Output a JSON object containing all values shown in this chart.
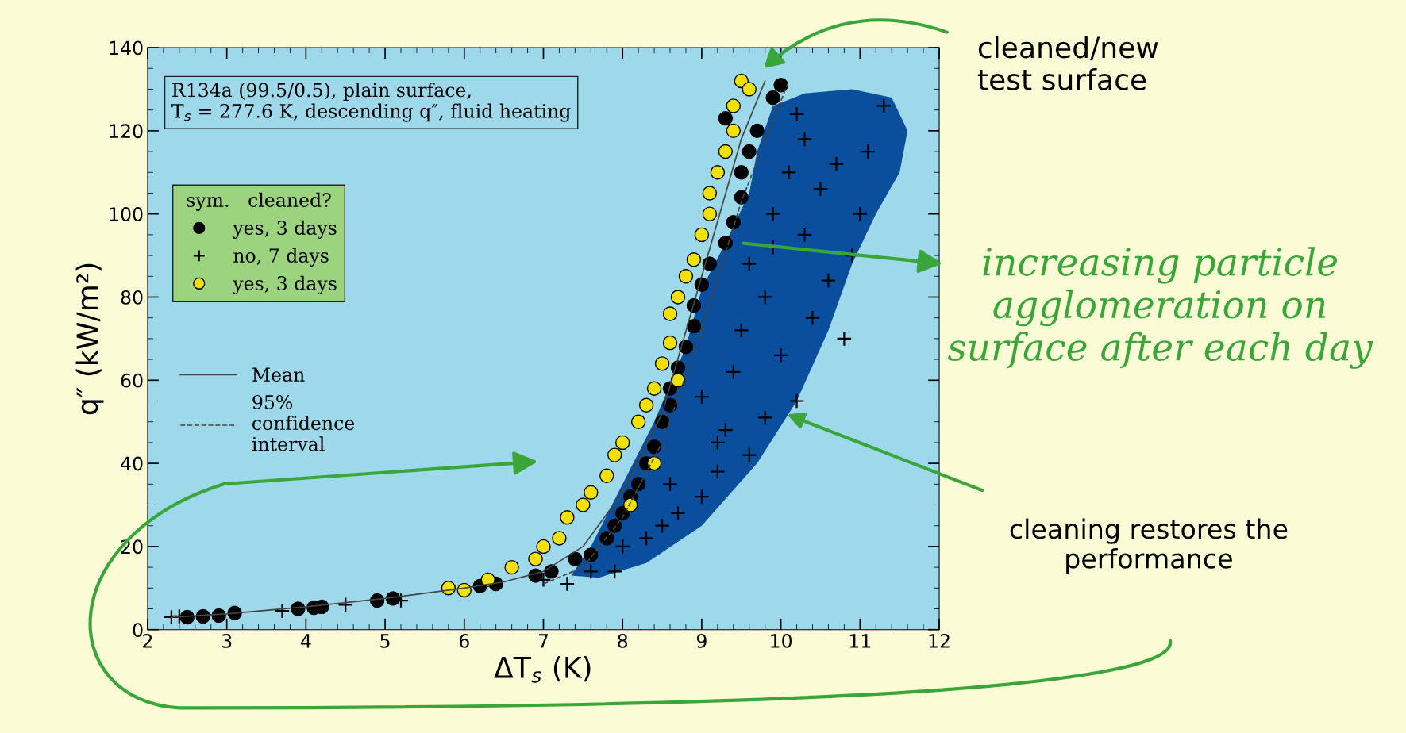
{
  "chart_data": {
    "type": "scatter",
    "xlabel": "ΔT$_{s}$ (K)",
    "ylabel": "q″ (kW/m²)",
    "xlim": [
      2,
      12
    ],
    "xticks": [
      2,
      3,
      4,
      5,
      6,
      7,
      8,
      9,
      10,
      11,
      12
    ],
    "ylim": [
      0,
      140
    ],
    "yticks": [
      0,
      20,
      40,
      60,
      80,
      100,
      120,
      140
    ],
    "grid": false,
    "legend": "top left",
    "legend_title": "sym.   cleaned?",
    "series": [
      {
        "name": "yes, 3 days",
        "color": "#000000",
        "marker": "circle",
        "x": [
          2.5,
          2.7,
          2.9,
          3.1,
          3.9,
          4.1,
          4.2,
          4.9,
          5.1,
          6.2,
          6.4,
          6.9,
          7.1,
          7.4,
          7.6,
          7.8,
          7.9,
          8.0,
          8.1,
          8.2,
          8.3,
          8.4,
          8.5,
          8.6,
          8.6,
          8.7,
          8.8,
          8.9,
          8.9,
          9.0,
          9.1,
          9.3,
          9.4,
          9.5,
          9.5,
          9.6,
          9.7,
          9.3,
          9.9,
          10.0
        ],
        "values": [
          3,
          3.2,
          3.4,
          4,
          5,
          5.3,
          5.5,
          7,
          7.5,
          10.5,
          11,
          13,
          14,
          17,
          18,
          22,
          25,
          28,
          32,
          35,
          40,
          44,
          50,
          54,
          58,
          63,
          68,
          73,
          78,
          83,
          88,
          93,
          98,
          104,
          110,
          115,
          120,
          123,
          128,
          131
        ]
      },
      {
        "name": "no, 7 days",
        "color": "#000000",
        "marker": "cross",
        "x": [
          2.3,
          2.4,
          3.7,
          4.5,
          5.2,
          7.0,
          7.3,
          7.6,
          7.9,
          8.0,
          8.3,
          8.5,
          8.7,
          9.0,
          8.6,
          9.2,
          9.6,
          9.3,
          9.8,
          9.0,
          10.2,
          9.4,
          10.0,
          9.5,
          10.4,
          9.8,
          10.6,
          9.6,
          10.9,
          10.3,
          9.9,
          11.0,
          10.5,
          10.1,
          11.1,
          10.3,
          11.3,
          10.2,
          10.7,
          9.9,
          10.8,
          9.2
        ],
        "values": [
          3,
          3.2,
          4.5,
          6,
          7,
          12,
          11,
          14,
          14,
          20,
          22,
          25,
          28,
          32,
          35,
          38,
          42,
          48,
          51,
          56,
          55,
          62,
          66,
          72,
          75,
          80,
          84,
          88,
          90,
          95,
          100,
          100,
          106,
          110,
          115,
          118,
          126,
          124,
          112,
          92,
          70,
          45
        ]
      },
      {
        "name": "yes, 3 days",
        "color": "#f2e000",
        "marker": "circle",
        "x": [
          5.8,
          6.0,
          6.3,
          6.6,
          6.9,
          7.0,
          7.2,
          7.3,
          7.5,
          7.6,
          7.8,
          7.9,
          8.0,
          8.2,
          8.3,
          8.4,
          8.5,
          8.6,
          8.6,
          8.7,
          8.8,
          8.9,
          9.0,
          9.1,
          9.1,
          9.2,
          9.3,
          9.4,
          9.4,
          9.5,
          9.6,
          8.1,
          8.4,
          8.7
        ],
        "values": [
          10,
          9.5,
          12,
          15,
          17,
          20,
          22,
          27,
          30,
          33,
          37,
          42,
          45,
          50,
          54,
          58,
          64,
          69,
          76,
          80,
          85,
          89,
          95,
          100,
          105,
          110,
          115,
          120,
          126,
          132,
          130,
          30,
          40,
          60
        ]
      },
      {
        "name": "Mean",
        "type": "line",
        "color": "#444444",
        "line_style": "solid",
        "x": [
          2.3,
          3,
          4,
          5,
          6,
          6.5,
          7,
          7.5,
          8,
          8.5,
          9,
          9.5,
          9.8
        ],
        "values": [
          3,
          3.8,
          5.5,
          7.5,
          10,
          11.5,
          14,
          20,
          33,
          52,
          85,
          118,
          132
        ]
      },
      {
        "name": "95%\nconfidence\ninterval",
        "type": "line",
        "color": "#444444",
        "line_style": "dashed",
        "x": [
          7,
          7.5,
          8,
          8.5,
          9,
          9.5,
          10.1
        ],
        "values": [
          11,
          15,
          27,
          45,
          72,
          103,
          132
        ]
      }
    ],
    "annotations": [
      "R134a (99.5/0.5), plain surface,\nT$_{s}$ = 277.6 K, descending q″, fluid heating",
      "cleaned/new\ntest surface",
      "increasing particle\nagglomeration on\nsurface after each day",
      "cleaning restores the\nperformance"
    ]
  }
}
